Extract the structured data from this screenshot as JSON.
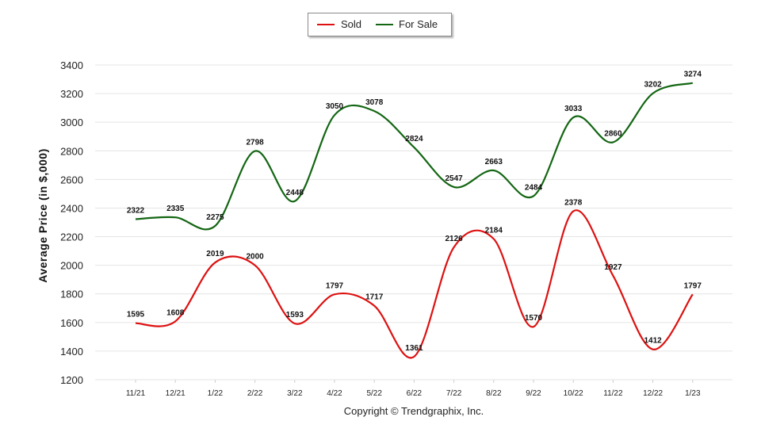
{
  "chart_data": {
    "type": "line",
    "categories": [
      "11/21",
      "12/21",
      "1/22",
      "2/22",
      "3/22",
      "4/22",
      "5/22",
      "6/22",
      "7/22",
      "8/22",
      "9/22",
      "10/22",
      "11/22",
      "12/22",
      "1/23"
    ],
    "series": [
      {
        "name": "Sold",
        "color": "#dd1111",
        "values": [
          1595,
          1608,
          2019,
          2000,
          1593,
          1797,
          1717,
          1361,
          2126,
          2184,
          1570,
          2378,
          1927,
          1412,
          1797
        ]
      },
      {
        "name": "For Sale",
        "color": "#136613",
        "values": [
          2322,
          2335,
          2275,
          2798,
          2448,
          3050,
          3078,
          2824,
          2547,
          2663,
          2484,
          3033,
          2860,
          3202,
          3274
        ]
      }
    ],
    "ylabel": "Average Price (in $,000)",
    "ylim": [
      1200,
      3400
    ],
    "yticks": [
      "1200",
      "1400",
      "1600",
      "1800",
      "2000",
      "2200",
      "2400",
      "2600",
      "2800",
      "3000",
      "3200",
      "3400"
    ],
    "grid": true,
    "legend": "top-center"
  },
  "footer": {
    "copyright": "Copyright © Trendgraphix, Inc."
  }
}
